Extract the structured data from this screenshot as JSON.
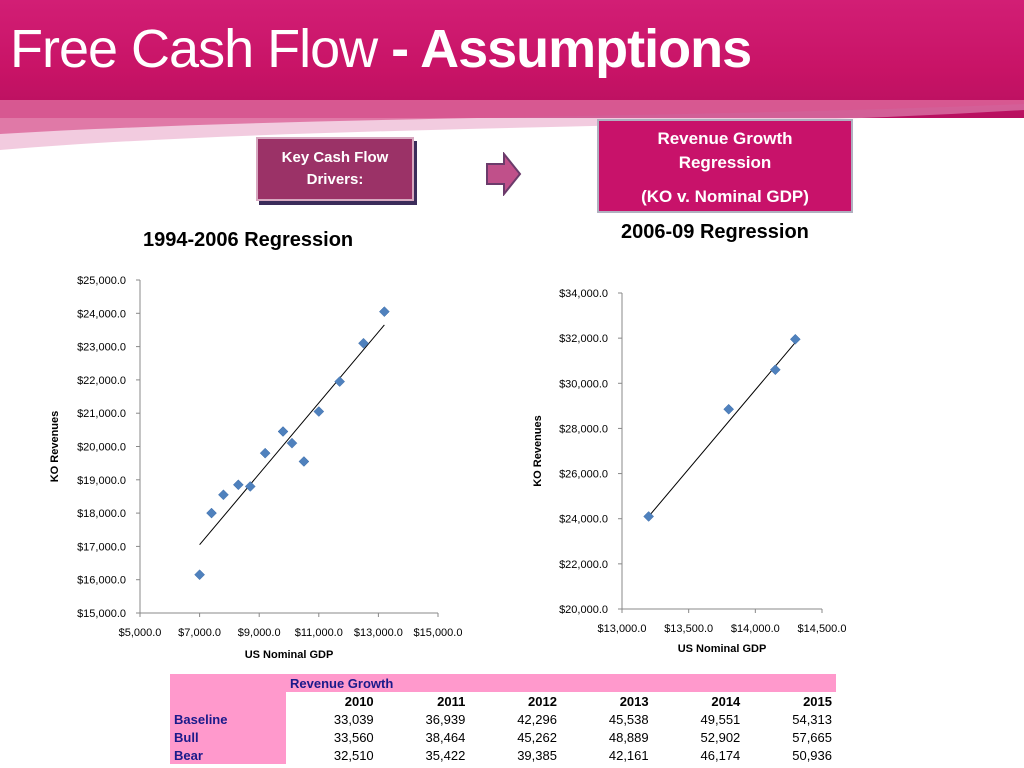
{
  "slide": {
    "title_main": "Free Cash Flow ",
    "title_bold": "- Assumptions",
    "driver_box": "Key Cash Flow Drivers:",
    "growth_box": {
      "line1": "Revenue Growth",
      "line2": "Regression",
      "line3": "(KO v. Nominal GDP)"
    },
    "colors": {
      "banner": "#c8126a",
      "marker": "#4f81bd",
      "table_header": "#ff99cc"
    }
  },
  "chart_data": [
    {
      "type": "scatter",
      "title": "1994-2006 Regression",
      "xlabel": "US Nominal GDP",
      "ylabel": "KO Revenues",
      "xlim": [
        5000,
        15000
      ],
      "ylim": [
        15000,
        25000
      ],
      "x_ticks": [
        "$5,000.0",
        "$7,000.0",
        "$9,000.0",
        "$11,000.0",
        "$13,000.0",
        "$15,000.0"
      ],
      "y_ticks": [
        "$15,000.0",
        "$16,000.0",
        "$17,000.0",
        "$18,000.0",
        "$19,000.0",
        "$20,000.0",
        "$21,000.0",
        "$22,000.0",
        "$23,000.0",
        "$24,000.0",
        "$25,000.0"
      ],
      "points": [
        [
          7000,
          16150
        ],
        [
          7400,
          18000
        ],
        [
          7800,
          18550
        ],
        [
          8300,
          18850
        ],
        [
          8700,
          18800
        ],
        [
          9200,
          19800
        ],
        [
          9800,
          20450
        ],
        [
          10100,
          20100
        ],
        [
          10500,
          19550
        ],
        [
          11000,
          21050
        ],
        [
          11700,
          21950
        ],
        [
          12500,
          23100
        ],
        [
          13200,
          24050
        ]
      ],
      "trendline": [
        [
          7000,
          17050
        ],
        [
          13200,
          23650
        ]
      ]
    },
    {
      "type": "scatter",
      "title": "2006-09 Regression",
      "xlabel": "US Nominal GDP",
      "ylabel": "KO Revenues",
      "xlim": [
        13000,
        14500
      ],
      "ylim": [
        20000,
        34000
      ],
      "x_ticks": [
        "$13,000.0",
        "$13,500.0",
        "$14,000.0",
        "$14,500.0"
      ],
      "y_ticks": [
        "$20,000.0",
        "$22,000.0",
        "$24,000.0",
        "$26,000.0",
        "$28,000.0",
        "$30,000.0",
        "$32,000.0",
        "$34,000.0"
      ],
      "points": [
        [
          13200,
          24100
        ],
        [
          13800,
          28850
        ],
        [
          14150,
          30600
        ],
        [
          14300,
          31950
        ]
      ],
      "trendline": [
        [
          13200,
          24100
        ],
        [
          14320,
          31950
        ]
      ]
    }
  ],
  "table": {
    "title": "Revenue Growth",
    "years": [
      "2010",
      "2011",
      "2012",
      "2013",
      "2014",
      "2015"
    ],
    "rows": [
      {
        "label": "Baseline",
        "values": [
          "33,039",
          "36,939",
          "42,296",
          "45,538",
          "49,551",
          "54,313"
        ]
      },
      {
        "label": "Bull",
        "values": [
          "33,560",
          "38,464",
          "45,262",
          "48,889",
          "52,902",
          "57,665"
        ]
      },
      {
        "label": "Bear",
        "values": [
          "32,510",
          "35,422",
          "39,385",
          "42,161",
          "46,174",
          "50,936"
        ]
      }
    ]
  }
}
